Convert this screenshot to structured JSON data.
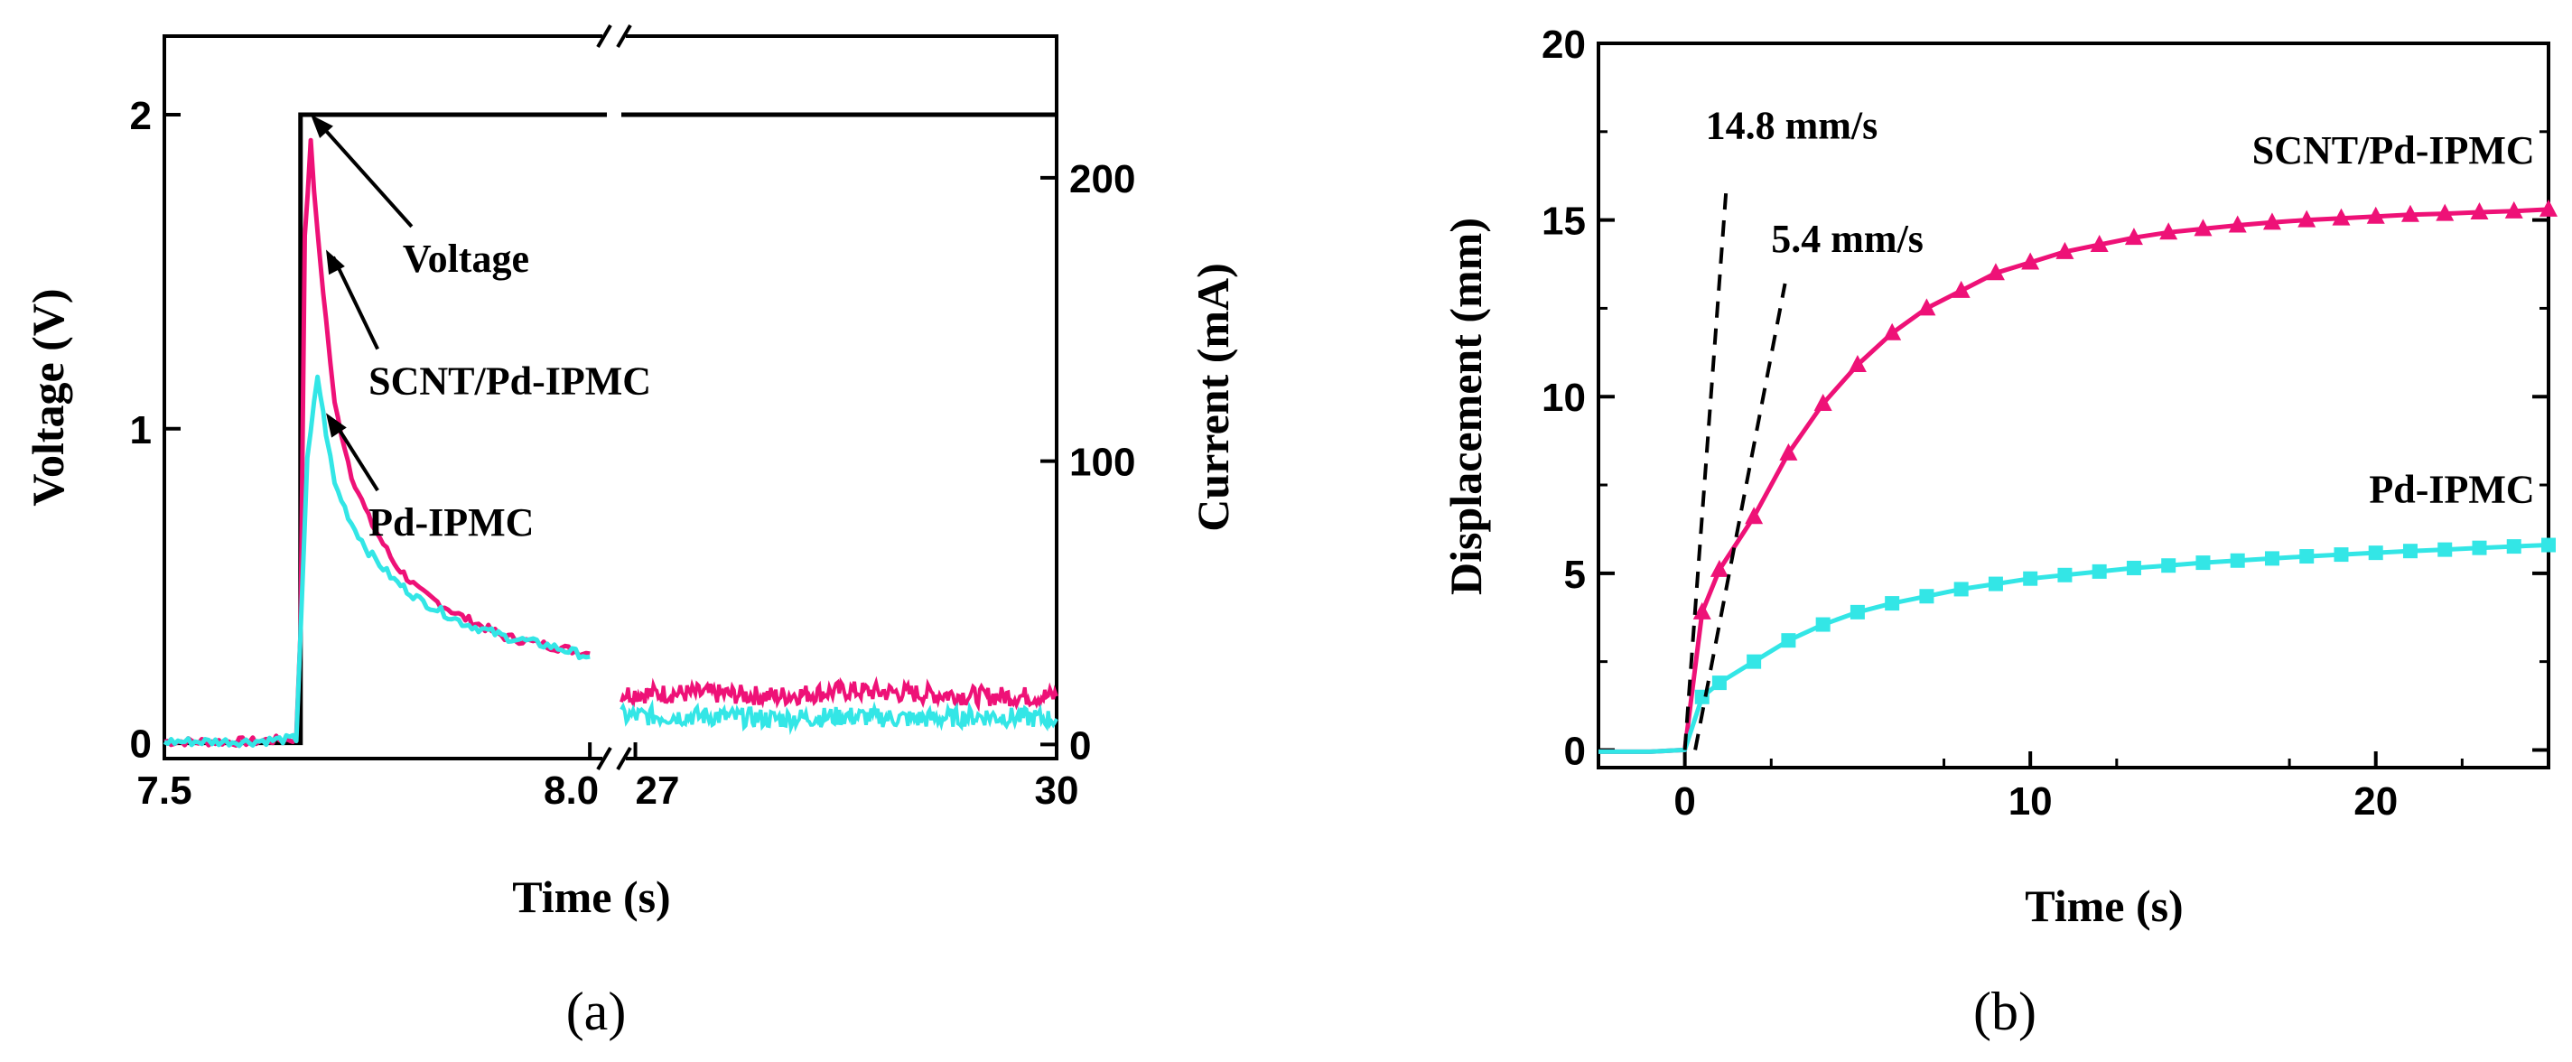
{
  "chart_data": [
    {
      "type": "line",
      "panel_label": "(a)",
      "xlabel": "Time (s)",
      "ylabel": "Voltage (V)",
      "ylabel_right": "Current (mA)",
      "x_segments": [
        {
          "range": [
            7.5,
            8.02
          ],
          "ticks": [
            "7.5",
            "8.0"
          ]
        },
        {
          "range": [
            26.9,
            30
          ],
          "ticks": [
            "27",
            "30"
          ]
        }
      ],
      "ylim": [
        -0.05,
        2.25
      ],
      "yticks": [
        "0",
        "1",
        "2"
      ],
      "ylim_right": [
        -5,
        250
      ],
      "yticks_right": [
        "0",
        "100",
        "200"
      ],
      "axis_break_symbol": "//",
      "series": [
        {
          "name": "Voltage",
          "axis": "left",
          "color": "#000000",
          "points": [
            [
              7.5,
              0
            ],
            [
              7.66,
              0
            ],
            [
              7.66,
              2
            ],
            [
              8.02,
              2
            ],
            [
              26.9,
              2
            ],
            [
              30,
              2
            ]
          ]
        },
        {
          "name": "SCNT/Pd-IPMC",
          "axis": "right",
          "color": "#ee1177",
          "segment1": [
            [
              7.5,
              1
            ],
            [
              7.56,
              1
            ],
            [
              7.6,
              1
            ],
            [
              7.655,
              2
            ],
            [
              7.66,
              40
            ],
            [
              7.665,
              180
            ],
            [
              7.672,
              212
            ],
            [
              7.68,
              180
            ],
            [
              7.69,
              150
            ],
            [
              7.7,
              120
            ],
            [
              7.72,
              95
            ],
            [
              7.74,
              80
            ],
            [
              7.77,
              64
            ],
            [
              7.8,
              54
            ],
            [
              7.85,
              45
            ],
            [
              7.9,
              38
            ],
            [
              7.95,
              35
            ],
            [
              8.0,
              32
            ]
          ],
          "segment2": [
            [
              26.9,
              18
            ],
            [
              27.5,
              18
            ],
            [
              28,
              17
            ],
            [
              28.5,
              19
            ],
            [
              29,
              18
            ],
            [
              29.5,
              17
            ],
            [
              30,
              17
            ]
          ]
        },
        {
          "name": "Pd-IPMC",
          "axis": "right",
          "color": "#33e6e6",
          "segment1": [
            [
              7.5,
              1
            ],
            [
              7.56,
              1
            ],
            [
              7.6,
              1
            ],
            [
              7.655,
              2
            ],
            [
              7.66,
              40
            ],
            [
              7.668,
              100
            ],
            [
              7.68,
              130
            ],
            [
              7.69,
              110
            ],
            [
              7.7,
              92
            ],
            [
              7.72,
              78
            ],
            [
              7.74,
              68
            ],
            [
              7.77,
              58
            ],
            [
              7.8,
              51
            ],
            [
              7.85,
              43
            ],
            [
              7.9,
              38
            ],
            [
              7.95,
              35
            ],
            [
              8.0,
              31
            ]
          ],
          "segment2": [
            [
              26.9,
              10
            ],
            [
              27.5,
              10
            ],
            [
              28,
              9
            ],
            [
              28.5,
              10
            ],
            [
              29,
              9
            ],
            [
              29.5,
              10
            ],
            [
              30,
              9
            ]
          ]
        }
      ],
      "annotations": [
        {
          "text": "Voltage",
          "target": [
            7.672,
            2.0
          ],
          "text_pos": [
            7.78,
            1.5
          ]
        },
        {
          "text": "SCNT/Pd-IPMC",
          "target": [
            7.69,
            1.57
          ],
          "text_pos": [
            7.74,
            1.11
          ]
        },
        {
          "text": "Pd-IPMC",
          "target": [
            7.69,
            1.05
          ],
          "text_pos": [
            7.74,
            0.66
          ]
        }
      ]
    },
    {
      "type": "line",
      "panel_label": "(b)",
      "xlabel": "Time (s)",
      "ylabel": "Displacement (mm)",
      "xlim": [
        -2.5,
        25
      ],
      "xticks": [
        "0",
        "10",
        "20"
      ],
      "ylim": [
        -0.5,
        20
      ],
      "yticks": [
        "0",
        "5",
        "10",
        "15",
        "20"
      ],
      "series": [
        {
          "name": "SCNT/Pd-IPMC",
          "color": "#ee1177",
          "marker": "triangle",
          "points": [
            [
              -2.5,
              -0.05
            ],
            [
              -2,
              -0.05
            ],
            [
              -1,
              -0.05
            ],
            [
              0,
              0
            ],
            [
              0.5,
              3.9
            ],
            [
              1,
              5.1
            ],
            [
              2,
              6.6
            ],
            [
              3,
              8.4
            ],
            [
              4,
              9.8
            ],
            [
              5,
              10.9
            ],
            [
              6,
              11.8
            ],
            [
              7,
              12.5
            ],
            [
              8,
              13.0
            ],
            [
              9,
              13.5
            ],
            [
              10,
              13.8
            ],
            [
              11,
              14.1
            ],
            [
              12,
              14.3
            ],
            [
              13,
              14.5
            ],
            [
              14,
              14.65
            ],
            [
              15,
              14.75
            ],
            [
              16,
              14.85
            ],
            [
              17,
              14.93
            ],
            [
              18,
              15.0
            ],
            [
              19,
              15.05
            ],
            [
              20,
              15.1
            ],
            [
              21,
              15.15
            ],
            [
              22,
              15.18
            ],
            [
              23,
              15.22
            ],
            [
              24,
              15.25
            ],
            [
              25,
              15.3
            ]
          ]
        },
        {
          "name": "Pd-IPMC",
          "color": "#33e6e6",
          "marker": "square",
          "points": [
            [
              -2.5,
              -0.05
            ],
            [
              -2,
              -0.05
            ],
            [
              -1,
              -0.05
            ],
            [
              0,
              0
            ],
            [
              0.5,
              1.5
            ],
            [
              1,
              1.9
            ],
            [
              2,
              2.5
            ],
            [
              3,
              3.1
            ],
            [
              4,
              3.55
            ],
            [
              5,
              3.9
            ],
            [
              6,
              4.15
            ],
            [
              7,
              4.35
            ],
            [
              8,
              4.55
            ],
            [
              9,
              4.7
            ],
            [
              10,
              4.85
            ],
            [
              11,
              4.95
            ],
            [
              12,
              5.05
            ],
            [
              13,
              5.15
            ],
            [
              14,
              5.22
            ],
            [
              15,
              5.3
            ],
            [
              16,
              5.36
            ],
            [
              17,
              5.42
            ],
            [
              18,
              5.48
            ],
            [
              19,
              5.53
            ],
            [
              20,
              5.58
            ],
            [
              21,
              5.63
            ],
            [
              22,
              5.67
            ],
            [
              23,
              5.72
            ],
            [
              24,
              5.76
            ],
            [
              25,
              5.8
            ]
          ]
        }
      ],
      "slope_lines": [
        {
          "label": "14.8 mm/s",
          "from": [
            0,
            0
          ],
          "to": [
            1.2,
            15.9
          ]
        },
        {
          "label": "5.4 mm/s",
          "from": [
            0.3,
            0
          ],
          "to": [
            2.9,
            13.2
          ]
        }
      ],
      "annotations": [
        {
          "text": "14.8 mm/s",
          "pos": [
            0.6,
            17.3
          ]
        },
        {
          "text": "5.4 mm/s",
          "pos": [
            2.5,
            14.1
          ]
        },
        {
          "text": "SCNT/Pd-IPMC",
          "pos": [
            24.6,
            16.6
          ]
        },
        {
          "text": "Pd-IPMC",
          "pos": [
            24.6,
            7.0
          ]
        }
      ]
    }
  ]
}
